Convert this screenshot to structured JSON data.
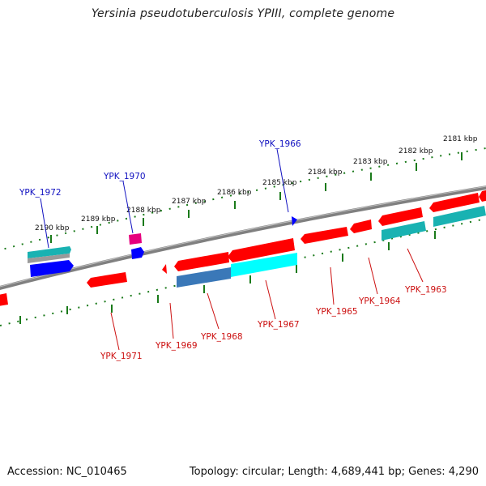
{
  "title": "Yersinia pseudotuberculosis YPIII, complete genome",
  "footer": {
    "accession": "Accession: NC_010465",
    "summary": "Topology: circular; Length: 4,689,441 bp; Genes: 4,290"
  },
  "colors": {
    "backbone": "#808080",
    "ruler_top": "#1a7a1a",
    "ruler_bottom": "#1a7a1a",
    "label_top": "#1010c0",
    "label_bottom": "#cc1010",
    "red": "#ff0000",
    "cyan": "#00e5e5",
    "teal": "#19b2b2",
    "blue": "#0000ff",
    "magenta": "#e6007e",
    "steel": "#3a78b8",
    "grey": "#9a9a9a"
  },
  "scale": {
    "unit": "kbp",
    "tick_labels": [
      "2190 kbp",
      "2189 kbp",
      "2188 kbp",
      "2187 kbp",
      "2186 kbp",
      "2185 kbp",
      "2184 kbp",
      "2183 kbp",
      "2182 kbp",
      "2181 kbp"
    ]
  },
  "gene_labels_top": [
    "YPK_1972",
    "YPK_1970",
    "YPK_1966"
  ],
  "gene_labels_bottom": [
    "YPK_1971",
    "YPK_1969",
    "YPK_1968",
    "YPK_1967",
    "YPK_1965",
    "YPK_1964",
    "YPK_1963"
  ]
}
